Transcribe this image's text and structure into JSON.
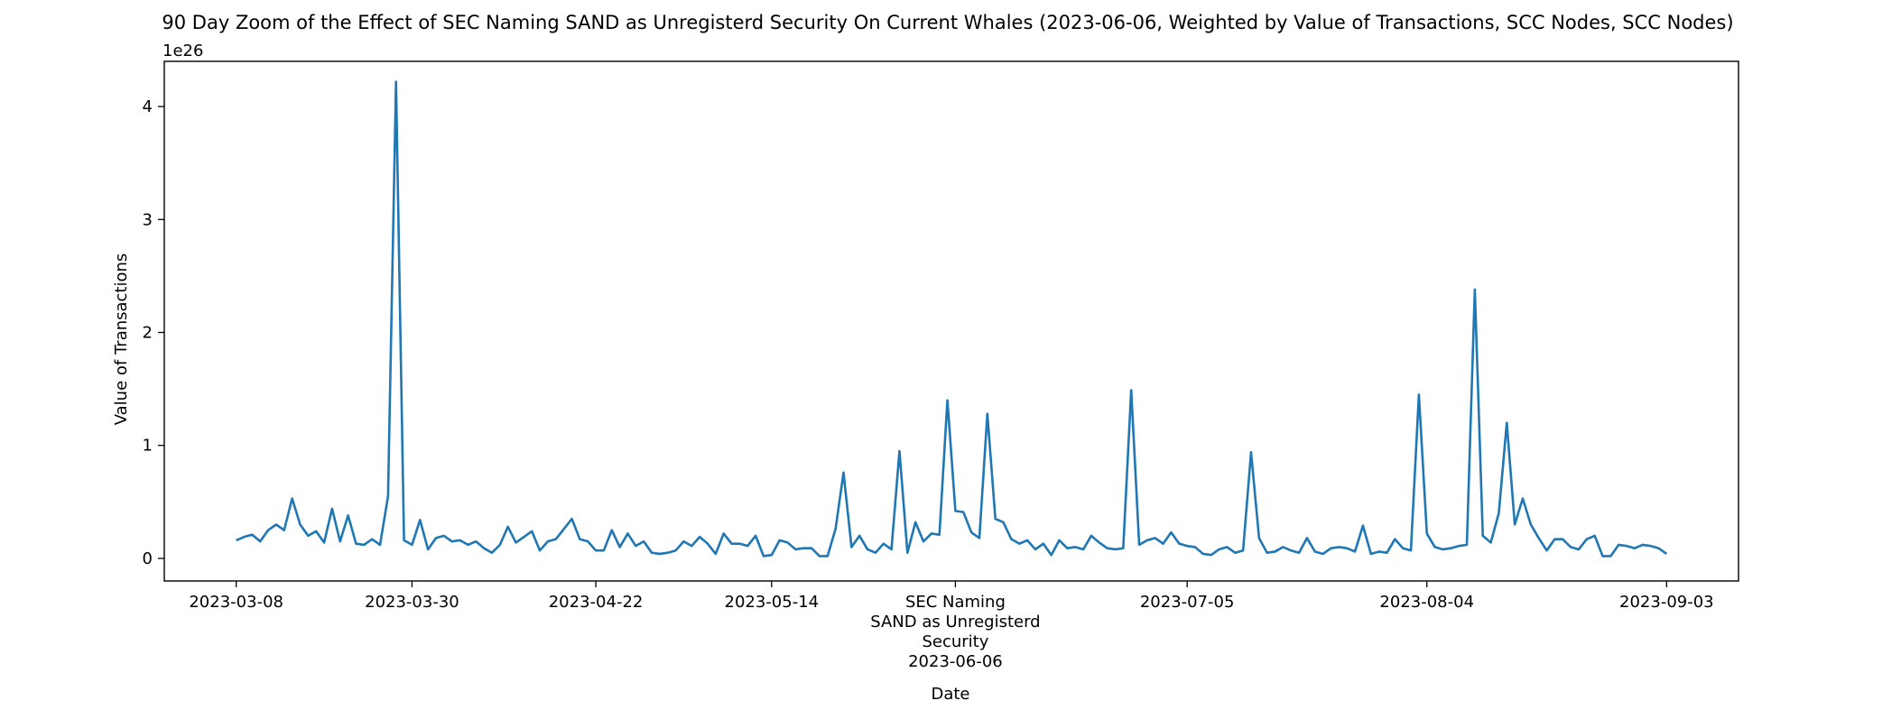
{
  "chart_data": {
    "type": "line",
    "title": "90 Day Zoom of the Effect of SEC Naming SAND as Unregisterd Security On Current Whales (2023-06-06, Weighted by Value of Transactions, SCC Nodes, SCC Nodes)",
    "xlabel": "Date",
    "ylabel": "Value of Transactions",
    "y_scale_label": "1e26",
    "y_scale_exponent": 26,
    "x_range": [
      "2023-02-27",
      "2023-09-12"
    ],
    "ylim": [
      -0.2,
      4.4
    ],
    "grid": false,
    "legend": "none",
    "line_color": "#1f77b4",
    "x_ticks": [
      {
        "date": "2023-03-08",
        "label": [
          "2023-03-08"
        ]
      },
      {
        "date": "2023-03-30",
        "label": [
          "2023-03-30"
        ]
      },
      {
        "date": "2023-04-22",
        "label": [
          "2023-04-22"
        ]
      },
      {
        "date": "2023-05-14",
        "label": [
          "2023-05-14"
        ]
      },
      {
        "date": "2023-06-06",
        "label": [
          "SEC Naming",
          "SAND as Unregisterd",
          "Security",
          "2023-06-06"
        ]
      },
      {
        "date": "2023-07-05",
        "label": [
          "2023-07-05"
        ]
      },
      {
        "date": "2023-08-04",
        "label": [
          "2023-08-04"
        ]
      },
      {
        "date": "2023-09-03",
        "label": [
          "2023-09-03"
        ]
      }
    ],
    "y_ticks": [
      {
        "value": 0,
        "label": "0"
      },
      {
        "value": 1,
        "label": "1"
      },
      {
        "value": 2,
        "label": "2"
      },
      {
        "value": 3,
        "label": "3"
      },
      {
        "value": 4,
        "label": "4"
      }
    ],
    "series": [
      {
        "x_start": "2023-03-08",
        "x_step_days": 1,
        "values": [
          0.16,
          0.19,
          0.21,
          0.15,
          0.25,
          0.3,
          0.25,
          0.53,
          0.3,
          0.2,
          0.24,
          0.14,
          0.44,
          0.15,
          0.38,
          0.13,
          0.12,
          0.17,
          0.12,
          0.55,
          4.22,
          0.16,
          0.12,
          0.34,
          0.08,
          0.18,
          0.2,
          0.15,
          0.16,
          0.12,
          0.15,
          0.09,
          0.05,
          0.12,
          0.28,
          0.14,
          0.19,
          0.24,
          0.07,
          0.15,
          0.17,
          0.26,
          0.35,
          0.17,
          0.15,
          0.07,
          0.07,
          0.25,
          0.1,
          0.22,
          0.11,
          0.15,
          0.05,
          0.04,
          0.05,
          0.07,
          0.15,
          0.11,
          0.19,
          0.13,
          0.04,
          0.22,
          0.13,
          0.13,
          0.11,
          0.2,
          0.02,
          0.03,
          0.16,
          0.14,
          0.08,
          0.09,
          0.09,
          0.02,
          0.02,
          0.26,
          0.76,
          0.1,
          0.2,
          0.08,
          0.05,
          0.13,
          0.08,
          0.95,
          0.05,
          0.32,
          0.15,
          0.22,
          0.21,
          1.4,
          0.42,
          0.41,
          0.23,
          0.18,
          1.28,
          0.35,
          0.32,
          0.17,
          0.13,
          0.16,
          0.08,
          0.13,
          0.03,
          0.16,
          0.09,
          0.1,
          0.08,
          0.2,
          0.14,
          0.09,
          0.08,
          0.09,
          1.49,
          0.12,
          0.16,
          0.18,
          0.13,
          0.23,
          0.13,
          0.11,
          0.1,
          0.04,
          0.03,
          0.08,
          0.1,
          0.05,
          0.07,
          0.94,
          0.18,
          0.05,
          0.06,
          0.1,
          0.07,
          0.05,
          0.18,
          0.06,
          0.04,
          0.09,
          0.1,
          0.09,
          0.06,
          0.29,
          0.04,
          0.06,
          0.05,
          0.17,
          0.09,
          0.07,
          1.45,
          0.22,
          0.1,
          0.08,
          0.09,
          0.11,
          0.12,
          2.38,
          0.2,
          0.14,
          0.4,
          1.2,
          0.3,
          0.53,
          0.3,
          0.18,
          0.07,
          0.17,
          0.17,
          0.1,
          0.08,
          0.17,
          0.2,
          0.02,
          0.02,
          0.12,
          0.11,
          0.09,
          0.12,
          0.11,
          0.09,
          0.04
        ]
      }
    ]
  }
}
